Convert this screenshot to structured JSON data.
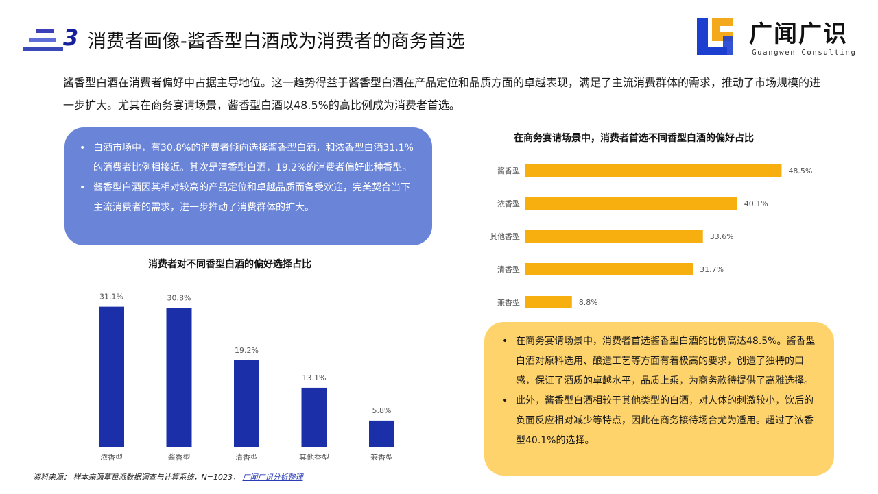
{
  "header": {
    "section_number": "3",
    "title": "消费者画像-酱香型白酒成为消费者的商务首选"
  },
  "logo": {
    "name_cn": "广闻广识",
    "name_en": "Guangwen Consulting"
  },
  "intro": "酱香型白酒在消费者偏好中占据主导地位。这一趋势得益于酱香型白酒在产品定位和品质方面的卓越表现，满足了主流消费群体的需求，推动了市场规模的进一步扩大。尤其在商务宴请场景，酱香型白酒以48.5%的高比例成为消费者首选。",
  "note_blue": {
    "items": [
      "白酒市场中，有30.8%的消费者倾向选择酱香型白酒，和浓香型白酒31.1%的消费者比例相接近。其次是清香型白酒，19.2%的消费者偏好此种香型。",
      "酱香型白酒因其相对较高的产品定位和卓越品质而备受欢迎，完美契合当下主流消费者的需求，进一步推动了消费群体的扩大。"
    ]
  },
  "note_yellow": {
    "items": [
      "在商务宴请场景中，消费者首选酱香型白酒的比例高达48.5%。酱香型白酒对原料选用、酿造工艺等方面有着极高的要求，创造了独特的口感，保证了酒质的卓越水平，品质上乘，为商务款待提供了高雅选择。",
      "此外，酱香型白酒相较于其他类型的白酒，对人体的刺激较小，饮后的负面反应相对减少等特点，因此在商务接待场合尤为适用。超过了浓香型40.1%的选择。"
    ]
  },
  "chart_data": [
    {
      "type": "bar",
      "orientation": "vertical",
      "title": "消费者对不同香型白酒的偏好选择占比",
      "categories": [
        "浓香型",
        "酱香型",
        "清香型",
        "其他香型",
        "兼香型"
      ],
      "values": [
        31.1,
        30.8,
        19.2,
        13.1,
        5.8
      ],
      "value_labels": [
        "31.1%",
        "30.8%",
        "19.2%",
        "13.1%",
        "5.8%"
      ],
      "unit": "%",
      "ylim": [
        0,
        35
      ],
      "color": "#1a2fa8",
      "grid": false
    },
    {
      "type": "bar",
      "orientation": "horizontal",
      "title": "在商务宴请场景中，消费者首选不同香型白酒的偏好占比",
      "categories": [
        "酱香型",
        "浓香型",
        "其他香型",
        "清香型",
        "兼香型"
      ],
      "values": [
        48.5,
        40.1,
        33.6,
        31.7,
        8.8
      ],
      "value_labels": [
        "48.5%",
        "40.1%",
        "33.6%",
        "31.7%",
        "8.8%"
      ],
      "unit": "%",
      "xlim": [
        0,
        50
      ],
      "color": "#f7ae0f",
      "grid": false
    }
  ],
  "source": {
    "label": "资料来源：",
    "text": "样本来源草莓派数据调查与计算系统，N=1023，",
    "link": "广闻广识分析整理"
  }
}
